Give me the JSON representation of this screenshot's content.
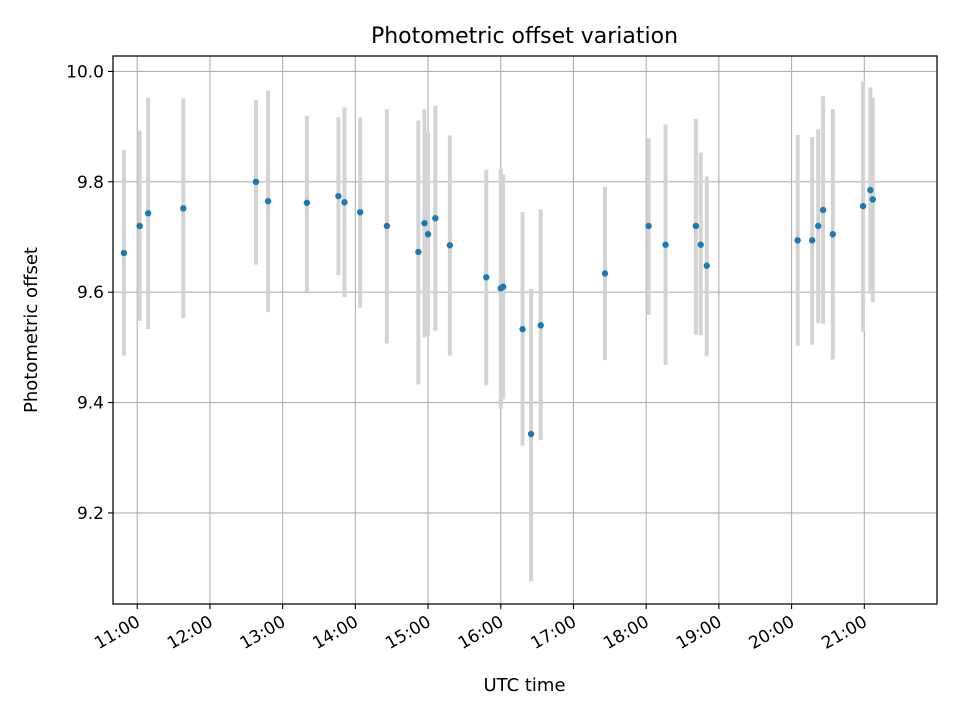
{
  "chart_data": {
    "type": "scatter",
    "title": "Photometric offset variation",
    "xlabel": "UTC time",
    "ylabel": "Photometric offset",
    "x_ticks": [
      "11:00",
      "12:00",
      "13:00",
      "14:00",
      "15:00",
      "16:00",
      "17:00",
      "18:00",
      "19:00",
      "20:00",
      "21:00"
    ],
    "y_ticks": [
      "9.2",
      "9.4",
      "9.6",
      "9.8",
      "10.0"
    ],
    "xlim": [
      "10:40",
      "22:00"
    ],
    "ylim": [
      9.035,
      10.028
    ],
    "grid": true,
    "point_color": "#1f77b4",
    "errorbar_color": "#d3d3d3",
    "points": [
      {
        "t": "10:49",
        "y": 9.671,
        "lo": 9.485,
        "hi": 9.858
      },
      {
        "t": "11:02",
        "y": 9.72,
        "lo": 9.548,
        "hi": 9.893
      },
      {
        "t": "11:09",
        "y": 9.743,
        "lo": 9.533,
        "hi": 9.952
      },
      {
        "t": "11:38",
        "y": 9.752,
        "lo": 9.553,
        "hi": 9.951
      },
      {
        "t": "12:38",
        "y": 9.8,
        "lo": 9.65,
        "hi": 9.948
      },
      {
        "t": "12:48",
        "y": 9.765,
        "lo": 9.564,
        "hi": 9.965
      },
      {
        "t": "13:20",
        "y": 9.762,
        "lo": 9.601,
        "hi": 9.92
      },
      {
        "t": "13:46",
        "y": 9.774,
        "lo": 9.631,
        "hi": 9.917
      },
      {
        "t": "13:51",
        "y": 9.763,
        "lo": 9.591,
        "hi": 9.935
      },
      {
        "t": "14:04",
        "y": 9.745,
        "lo": 9.572,
        "hi": 9.917
      },
      {
        "t": "14:26",
        "y": 9.72,
        "lo": 9.507,
        "hi": 9.931
      },
      {
        "t": "14:52",
        "y": 9.673,
        "lo": 9.433,
        "hi": 9.911
      },
      {
        "t": "14:57",
        "y": 9.725,
        "lo": 9.518,
        "hi": 9.931
      },
      {
        "t": "15:00",
        "y": 9.705,
        "lo": 9.521,
        "hi": 9.889
      },
      {
        "t": "15:06",
        "y": 9.734,
        "lo": 9.53,
        "hi": 9.938
      },
      {
        "t": "15:18",
        "y": 9.685,
        "lo": 9.485,
        "hi": 9.884
      },
      {
        "t": "15:48",
        "y": 9.627,
        "lo": 9.431,
        "hi": 9.822
      },
      {
        "t": "16:00",
        "y": 9.607,
        "lo": 9.389,
        "hi": 9.824
      },
      {
        "t": "16:02",
        "y": 9.61,
        "lo": 9.406,
        "hi": 9.813
      },
      {
        "t": "16:18",
        "y": 9.533,
        "lo": 9.322,
        "hi": 9.745
      },
      {
        "t": "16:25",
        "y": 9.343,
        "lo": 9.076,
        "hi": 9.606
      },
      {
        "t": "16:33",
        "y": 9.54,
        "lo": 9.332,
        "hi": 9.75
      },
      {
        "t": "17:26",
        "y": 9.634,
        "lo": 9.477,
        "hi": 9.791
      },
      {
        "t": "18:02",
        "y": 9.72,
        "lo": 9.559,
        "hi": 9.879
      },
      {
        "t": "18:16",
        "y": 9.686,
        "lo": 9.468,
        "hi": 9.904
      },
      {
        "t": "18:41",
        "y": 9.72,
        "lo": 9.523,
        "hi": 9.914
      },
      {
        "t": "18:45",
        "y": 9.686,
        "lo": 9.522,
        "hi": 9.853
      },
      {
        "t": "18:50",
        "y": 9.648,
        "lo": 9.484,
        "hi": 9.81
      },
      {
        "t": "20:05",
        "y": 9.694,
        "lo": 9.503,
        "hi": 9.885
      },
      {
        "t": "20:17",
        "y": 9.694,
        "lo": 9.505,
        "hi": 9.881
      },
      {
        "t": "20:22",
        "y": 9.72,
        "lo": 9.544,
        "hi": 9.895
      },
      {
        "t": "20:26",
        "y": 9.749,
        "lo": 9.543,
        "hi": 9.955
      },
      {
        "t": "20:34",
        "y": 9.705,
        "lo": 9.478,
        "hi": 9.932
      },
      {
        "t": "20:59",
        "y": 9.756,
        "lo": 9.528,
        "hi": 9.982
      },
      {
        "t": "21:05",
        "y": 9.785,
        "lo": 9.597,
        "hi": 9.971
      },
      {
        "t": "21:07",
        "y": 9.768,
        "lo": 9.582,
        "hi": 9.953
      }
    ]
  }
}
